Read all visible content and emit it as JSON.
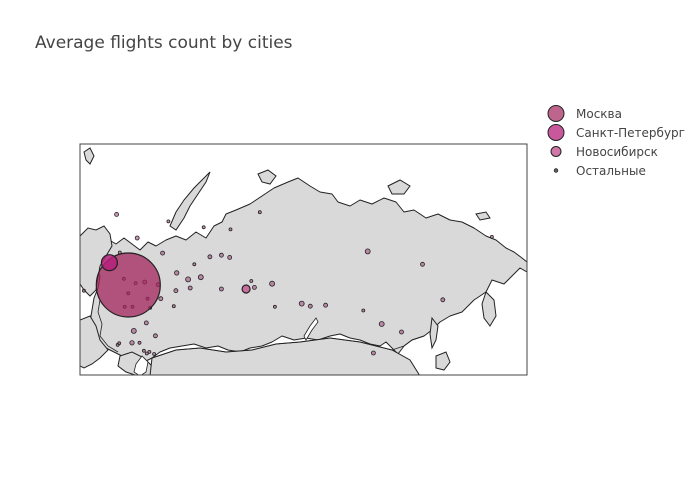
{
  "title": "Average flights count by cities",
  "colors": {
    "land": "#d9d9d9",
    "border": "#222222",
    "moscow": "#a3245e",
    "spb": "#b5207a",
    "novosibirsk": "#c24a8a",
    "other": "#a05080",
    "text": "#444444"
  },
  "legend": [
    {
      "name": "Москва",
      "swatch_r": 8,
      "color": "#a3245e"
    },
    {
      "name": "Санкт-Петербург",
      "swatch_r": 8,
      "color": "#b5207a"
    },
    {
      "name": "Новосибирск",
      "swatch_r": 5,
      "color": "#c24a8a"
    },
    {
      "name": "Остальные",
      "swatch_r": 1.5,
      "color": "#666666"
    }
  ],
  "chart_data": {
    "type": "scatter",
    "projection": "equirectangular",
    "lon_range": [
      19,
      191
    ],
    "lat_range": [
      39,
      82
    ],
    "series": [
      {
        "name": "Москва",
        "points": [
          {
            "lon": 37.6,
            "lat": 55.75,
            "size": 32
          }
        ]
      },
      {
        "name": "Санкт-Петербург",
        "points": [
          {
            "lon": 30.3,
            "lat": 59.9,
            "size": 8
          }
        ]
      },
      {
        "name": "Новосибирск",
        "points": [
          {
            "lon": 82.9,
            "lat": 55.0,
            "size": 4
          }
        ]
      },
      {
        "name": "Остальные",
        "points": [
          {
            "lon": 49.1,
            "lat": 55.8,
            "size": 2
          },
          {
            "lon": 60.6,
            "lat": 56.8,
            "size": 2.5
          },
          {
            "lon": 56.2,
            "lat": 58.0,
            "size": 2.2
          },
          {
            "lon": 50.1,
            "lat": 53.2,
            "size": 2
          },
          {
            "lon": 39.7,
            "lat": 47.2,
            "size": 2.5
          },
          {
            "lon": 39.0,
            "lat": 45.0,
            "size": 2.2
          },
          {
            "lon": 43.9,
            "lat": 56.3,
            "size": 2
          },
          {
            "lon": 44.5,
            "lat": 48.7,
            "size": 2
          },
          {
            "lon": 61.4,
            "lat": 55.2,
            "size": 2
          },
          {
            "lon": 55.9,
            "lat": 54.7,
            "size": 2
          },
          {
            "lon": 73.4,
            "lat": 55.0,
            "size": 2
          },
          {
            "lon": 65.5,
            "lat": 57.2,
            "size": 2.5
          },
          {
            "lon": 73.4,
            "lat": 61.3,
            "size": 2
          },
          {
            "lon": 76.6,
            "lat": 60.9,
            "size": 2
          },
          {
            "lon": 86.1,
            "lat": 55.3,
            "size": 2
          },
          {
            "lon": 92.9,
            "lat": 56.0,
            "size": 2.5
          },
          {
            "lon": 104.3,
            "lat": 52.3,
            "size": 2.5
          },
          {
            "lon": 107.6,
            "lat": 51.8,
            "size": 2
          },
          {
            "lon": 113.5,
            "lat": 52.0,
            "size": 2
          },
          {
            "lon": 129.7,
            "lat": 62.0,
            "size": 2.5
          },
          {
            "lon": 135.1,
            "lat": 48.5,
            "size": 2.5
          },
          {
            "lon": 131.9,
            "lat": 43.1,
            "size": 2
          },
          {
            "lon": 150.8,
            "lat": 59.6,
            "size": 2
          },
          {
            "lon": 158.6,
            "lat": 53.0,
            "size": 2
          },
          {
            "lon": 142.7,
            "lat": 47.0,
            "size": 2
          },
          {
            "lon": 41.0,
            "lat": 64.5,
            "size": 2
          },
          {
            "lon": 33.1,
            "lat": 68.9,
            "size": 2
          },
          {
            "lon": 50.8,
            "lat": 61.7,
            "size": 2
          },
          {
            "lon": 69.0,
            "lat": 61.0,
            "size": 2
          },
          {
            "lon": 88.2,
            "lat": 69.3,
            "size": 1.5
          },
          {
            "lon": 20.5,
            "lat": 54.7,
            "size": 1.5
          },
          {
            "lon": 34.3,
            "lat": 61.8,
            "size": 1.5
          },
          {
            "lon": 47.5,
            "lat": 42.9,
            "size": 1.5
          },
          {
            "lon": 45.0,
            "lat": 53.2,
            "size": 1.5
          },
          {
            "lon": 46.0,
            "lat": 51.5,
            "size": 1.5
          },
          {
            "lon": 48.0,
            "lat": 46.3,
            "size": 2
          },
          {
            "lon": 36.2,
            "lat": 51.7,
            "size": 1.5
          },
          {
            "lon": 39.2,
            "lat": 51.7,
            "size": 1.5
          },
          {
            "lon": 55.1,
            "lat": 51.8,
            "size": 1.5
          },
          {
            "lon": 66.6,
            "lat": 66.5,
            "size": 1.5
          },
          {
            "lon": 76.9,
            "lat": 66.1,
            "size": 1.5
          },
          {
            "lon": 53.0,
            "lat": 67.6,
            "size": 1.5
          },
          {
            "lon": 84.9,
            "lat": 56.5,
            "size": 1.5
          },
          {
            "lon": 128.0,
            "lat": 51.0,
            "size": 1.5
          },
          {
            "lon": 177.5,
            "lat": 64.7,
            "size": 1.5
          },
          {
            "lon": 63.0,
            "lat": 59.6,
            "size": 1.5
          },
          {
            "lon": 94.0,
            "lat": 51.7,
            "size": 1.5
          },
          {
            "lon": 35.9,
            "lat": 56.9,
            "size": 1.5
          },
          {
            "lon": 40.4,
            "lat": 56.1,
            "size": 1.5
          },
          {
            "lon": 37.6,
            "lat": 54.2,
            "size": 1.5
          },
          {
            "lon": 41.9,
            "lat": 45.0,
            "size": 1.5
          },
          {
            "lon": 43.6,
            "lat": 43.5,
            "size": 1.5
          },
          {
            "lon": 44.7,
            "lat": 43.0,
            "size": 1.5
          },
          {
            "lon": 45.7,
            "lat": 43.3,
            "size": 1.5
          },
          {
            "lon": 33.5,
            "lat": 44.6,
            "size": 1.5
          },
          {
            "lon": 34.1,
            "lat": 44.9,
            "size": 1.5
          }
        ]
      }
    ]
  }
}
